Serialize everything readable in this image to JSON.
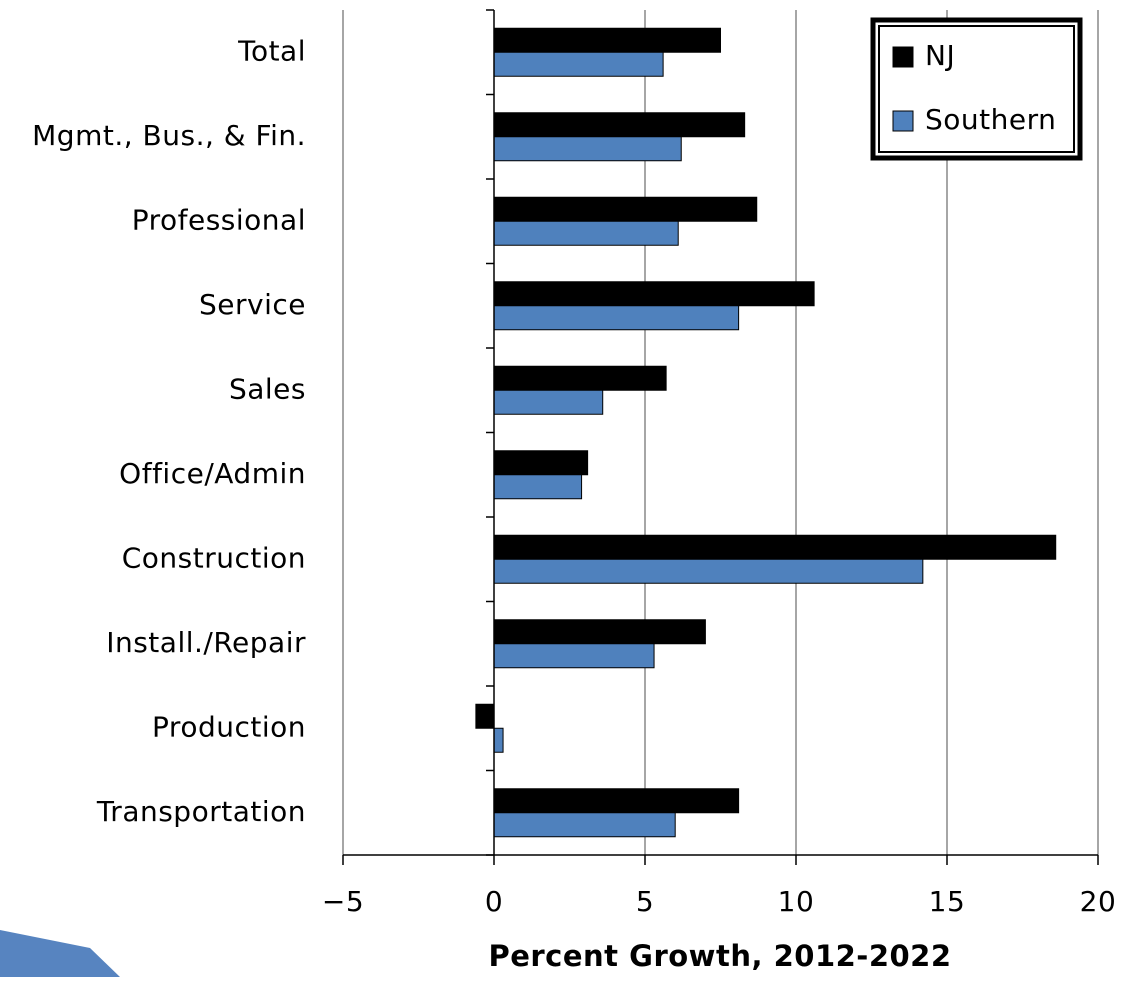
{
  "chart_data": {
    "type": "hbar",
    "x_label": "Percent Growth, 2012-2022",
    "categories": [
      "Total",
      "Mgmt., Bus., & Fin.",
      "Professional",
      "Service",
      "Sales",
      "Office/Admin",
      "Construction",
      "Install./Repair",
      "Production",
      "Transportation"
    ],
    "series": [
      {
        "name": "NJ",
        "color": "#000000",
        "values": [
          7.5,
          8.3,
          8.7,
          10.6,
          5.7,
          3.1,
          18.6,
          7.0,
          -0.6,
          8.1
        ]
      },
      {
        "name": "Southern",
        "color": "#4f81bd",
        "values": [
          5.6,
          6.2,
          6.1,
          8.1,
          3.6,
          2.9,
          14.2,
          5.3,
          0.3,
          6.0
        ]
      }
    ],
    "xlim": [
      -5,
      20
    ],
    "xticks": [
      {
        "value": -5,
        "label": "−5"
      },
      0,
      5,
      10,
      15,
      20
    ],
    "grid": true,
    "legend": "top-right"
  }
}
